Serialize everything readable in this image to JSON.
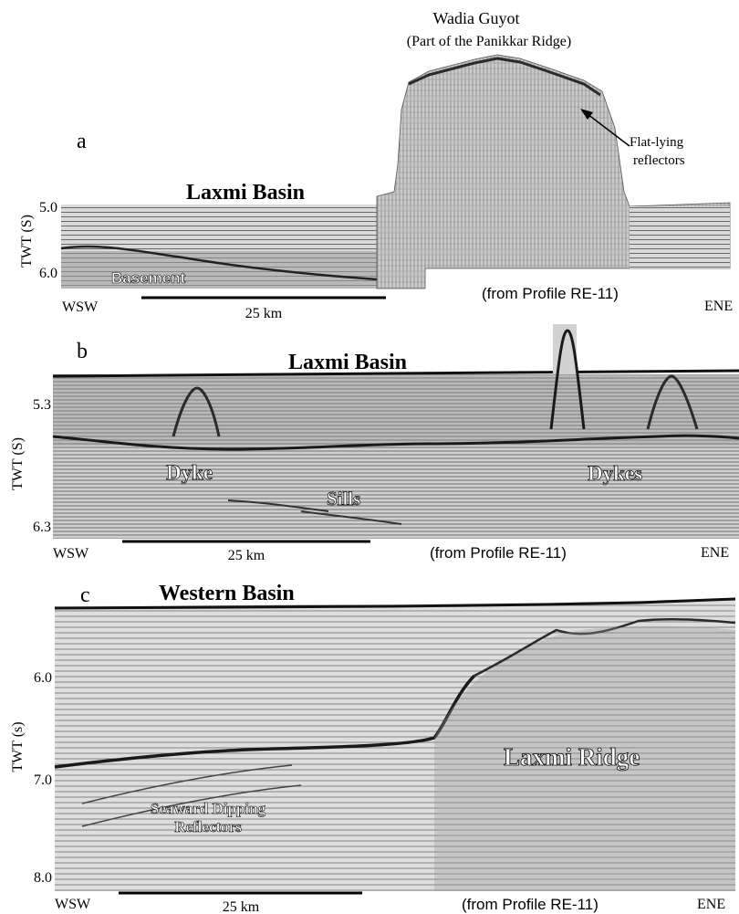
{
  "panels": [
    {
      "id": "a",
      "letter": "a",
      "title": "Laxmi Basin",
      "feature_title": "Wadia Guyot",
      "feature_subtitle": "(Part of the Panikkar Ridge)",
      "annotation": "Flat-lying reflectors",
      "annotation_lines": [
        "Flat-lying",
        "reflectors"
      ],
      "labels": [
        "Basement"
      ],
      "y_axis_label": "TWT (S)",
      "y_ticks": [
        "5.0",
        "6.0"
      ],
      "left_direction": "WSW",
      "right_direction": "ENE",
      "scale_bar": "25 km",
      "source": "(from Profile RE-11)"
    },
    {
      "id": "b",
      "letter": "b",
      "title": "Laxmi Basin",
      "labels": [
        "Dyke",
        "Sills",
        "Dykes"
      ],
      "y_axis_label": "TWT (S)",
      "y_ticks": [
        "5.3",
        "6.3"
      ],
      "left_direction": "WSW",
      "right_direction": "ENE",
      "scale_bar": "25 km",
      "source": "(from Profile RE-11)"
    },
    {
      "id": "c",
      "letter": "c",
      "title": "Western Basin",
      "labels": [
        "Laxmi Ridge",
        "Seaward Dipping",
        "Reflectors"
      ],
      "y_axis_label": "TWT (s)",
      "y_ticks": [
        "6.0",
        "7.0",
        "8.0"
      ],
      "left_direction": "WSW",
      "right_direction": "ENE",
      "scale_bar": "25 km",
      "source": "(from Profile RE-11)"
    }
  ]
}
